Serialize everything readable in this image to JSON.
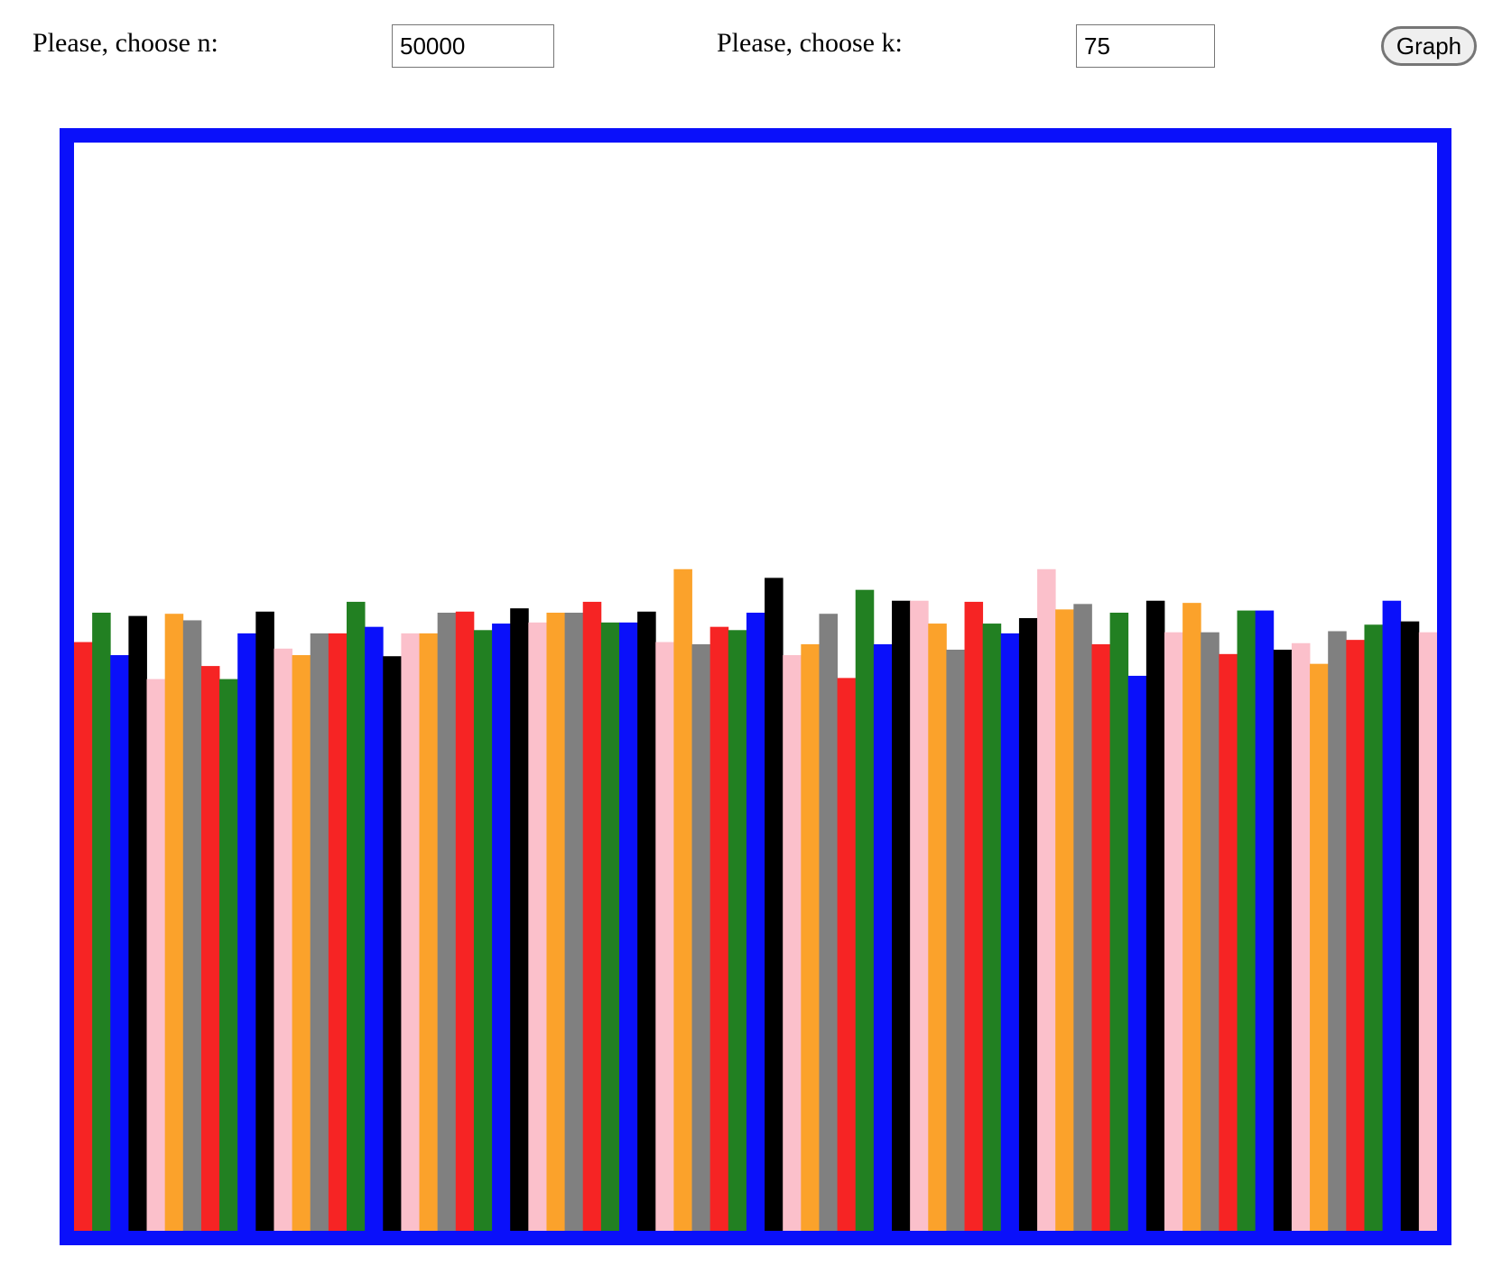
{
  "controls": {
    "n_label": "Please, choose n:",
    "n_value": "50000",
    "k_label": "Please, choose k:",
    "k_value": "75",
    "graph_button": "Graph"
  },
  "colors": {
    "frame_border": "#0a10fa",
    "palette": [
      "#f62424",
      "#228022",
      "#0a10fa",
      "#000000",
      "#fbc0cb",
      "#fba22b",
      "#808080"
    ]
  },
  "chart_data": {
    "type": "bar",
    "series_count": 75,
    "ylim": [
      0,
      1
    ],
    "grid": false,
    "legend": "none",
    "values": [
      0.541,
      0.568,
      0.529,
      0.565,
      0.507,
      0.567,
      0.561,
      0.519,
      0.507,
      0.549,
      0.569,
      0.535,
      0.529,
      0.549,
      0.549,
      0.578,
      0.555,
      0.528,
      0.549,
      0.549,
      0.568,
      0.569,
      0.552,
      0.558,
      0.572,
      0.559,
      0.568,
      0.568,
      0.578,
      0.559,
      0.559,
      0.569,
      0.541,
      0.608,
      0.539,
      0.555,
      0.552,
      0.568,
      0.6,
      0.529,
      0.539,
      0.567,
      0.508,
      0.589,
      0.539,
      0.579,
      0.579,
      0.558,
      0.534,
      0.578,
      0.558,
      0.549,
      0.563,
      0.608,
      0.571,
      0.576,
      0.539,
      0.568,
      0.51,
      0.579,
      0.55,
      0.577,
      0.55,
      0.53,
      0.57,
      0.57,
      0.534,
      0.54,
      0.521,
      0.551,
      0.543,
      0.557,
      0.579,
      0.56,
      0.55
    ]
  }
}
